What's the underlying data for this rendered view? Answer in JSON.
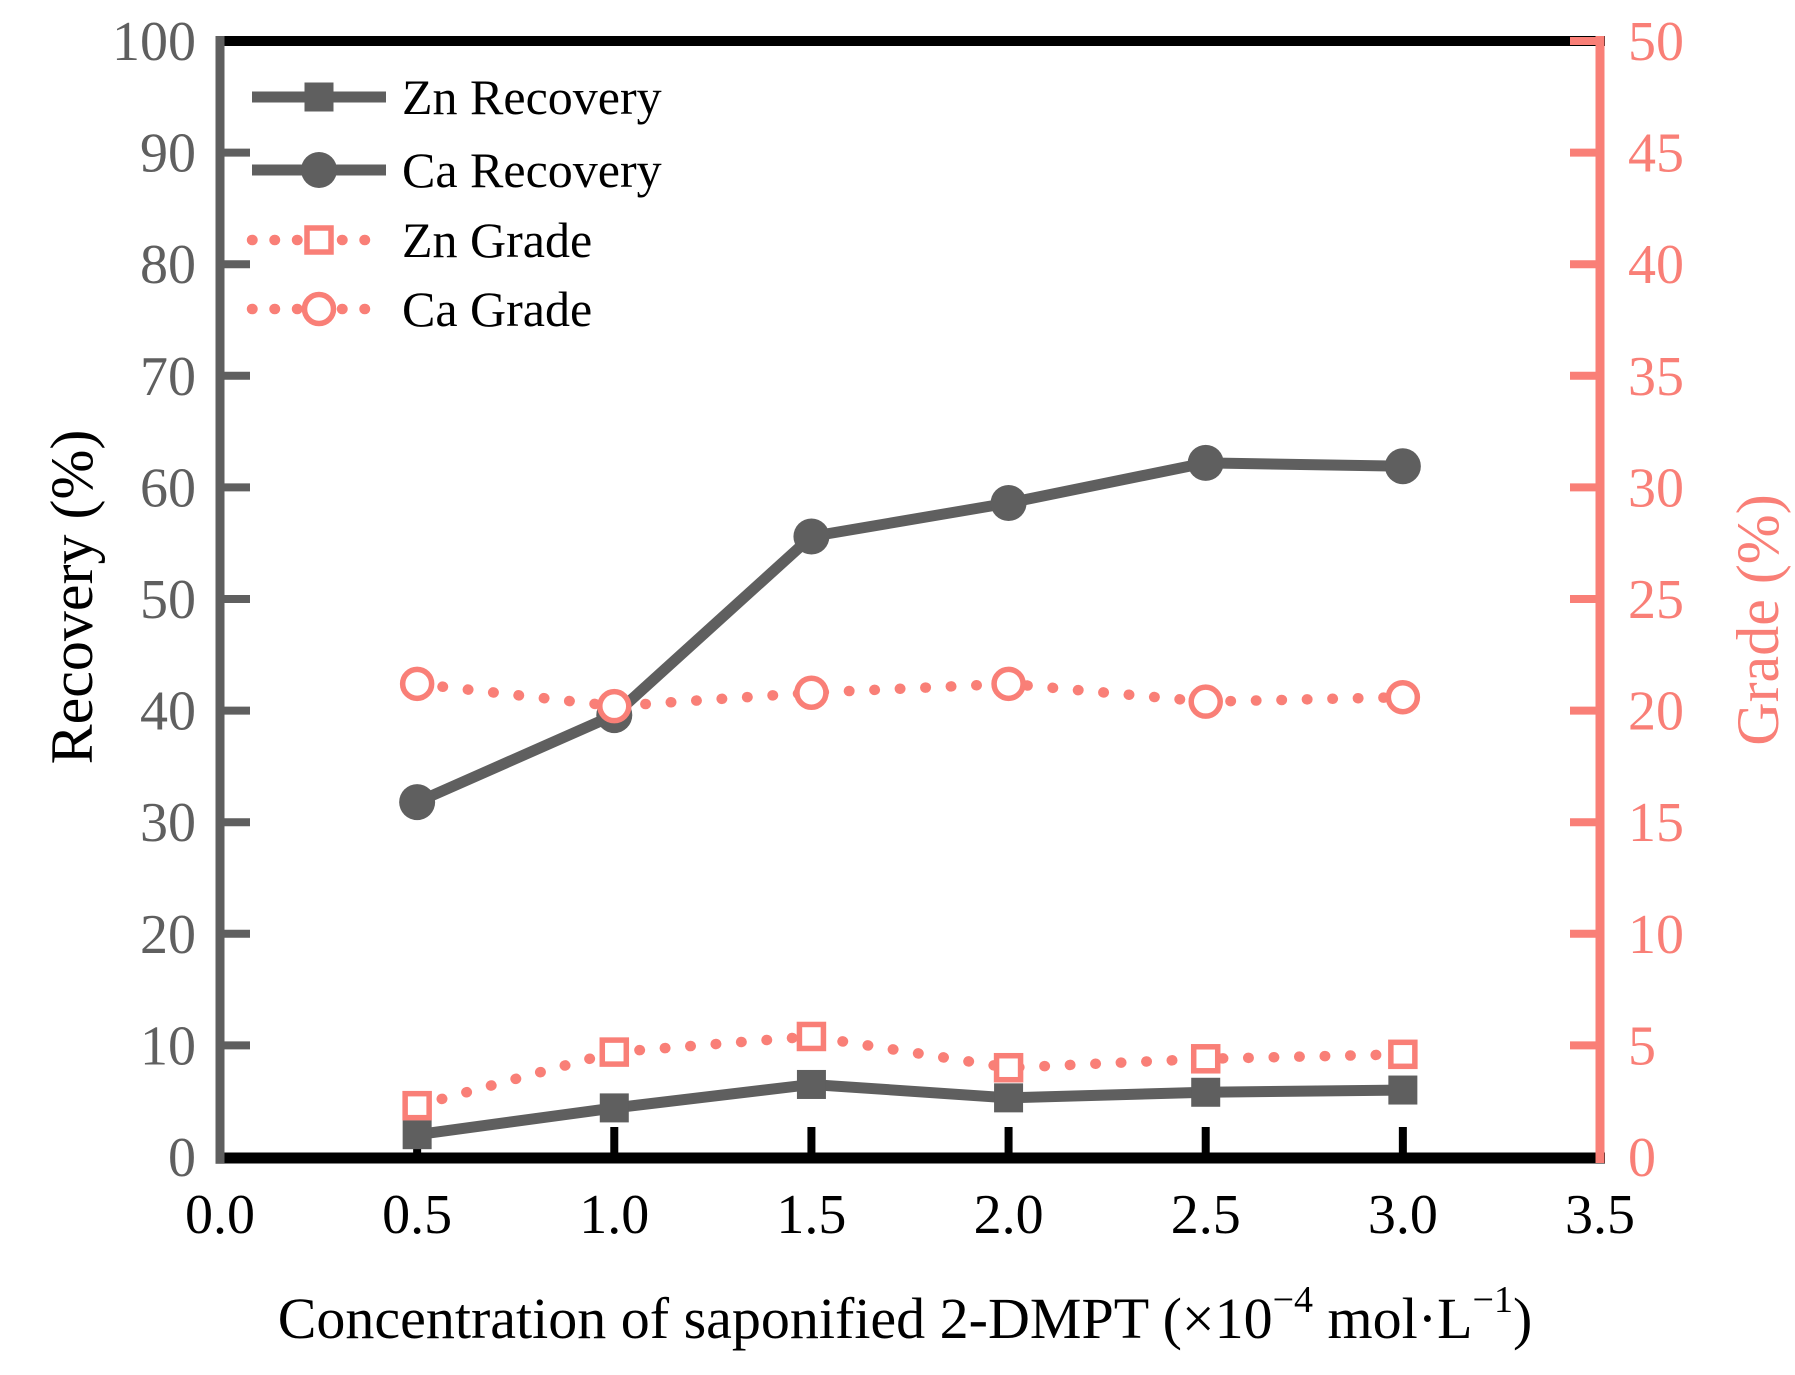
{
  "chart_data": {
    "type": "line",
    "title": "",
    "xlabel": "Concentration of saponified 2-DMPT (×10−4 mol·L−1)",
    "xlabel_parts": [
      {
        "text": "Concentration of saponified 2-DMPT (×10",
        "sup": false
      },
      {
        "text": "−4",
        "sup": true
      },
      {
        "text": " mol·L",
        "sup": false
      },
      {
        "text": "−1",
        "sup": true
      },
      {
        "text": ")",
        "sup": false
      }
    ],
    "x_axis": {
      "min": 0.0,
      "max": 3.5,
      "tick_step": 0.5,
      "tick_labels": [
        "0.0",
        "0.5",
        "1.0",
        "1.5",
        "2.0",
        "2.5",
        "3.0",
        "3.5"
      ]
    },
    "y_left": {
      "label": "Recovery (%)",
      "min": 0,
      "max": 100,
      "tick_step": 10,
      "tick_labels": [
        "0",
        "10",
        "20",
        "30",
        "40",
        "50",
        "60",
        "70",
        "80",
        "90",
        "100"
      ]
    },
    "y_right": {
      "label": "Grade (%)",
      "min": 0,
      "max": 50,
      "tick_step": 5,
      "tick_labels": [
        "0",
        "5",
        "10",
        "15",
        "20",
        "25",
        "30",
        "35",
        "40",
        "45",
        "50"
      ]
    },
    "x": [
      0.5,
      1.0,
      1.5,
      2.0,
      2.5,
      3.0
    ],
    "series": [
      {
        "name": "Zn Recovery",
        "axis": "left",
        "color": "#5f5f5f",
        "line": "solid",
        "marker": "filled-square",
        "values": [
          2.0,
          4.4,
          6.5,
          5.3,
          5.8,
          6.0
        ]
      },
      {
        "name": "Ca Recovery",
        "axis": "left",
        "color": "#5f5f5f",
        "line": "solid",
        "marker": "filled-circle",
        "values": [
          31.8,
          39.6,
          55.6,
          58.6,
          62.2,
          61.9
        ]
      },
      {
        "name": "Zn Grade",
        "axis": "right",
        "color": "#f97f77",
        "line": "dotted",
        "marker": "open-square",
        "values": [
          2.3,
          4.7,
          5.4,
          4.0,
          4.4,
          4.6
        ]
      },
      {
        "name": "Ca Grade",
        "axis": "right",
        "color": "#f97f77",
        "line": "dotted",
        "marker": "open-circle",
        "values": [
          21.2,
          20.2,
          20.8,
          21.2,
          20.4,
          20.6
        ]
      }
    ],
    "legend": {
      "position": "top-left",
      "items": [
        "Zn Recovery",
        "Ca Recovery",
        "Zn Grade",
        "Ca Grade"
      ]
    },
    "grid": false,
    "colors": {
      "recovery_axis_gray": "#5f5f5f",
      "grade_axis_pink": "#f97f77",
      "frame_black": "#000000",
      "background": "#ffffff"
    }
  }
}
